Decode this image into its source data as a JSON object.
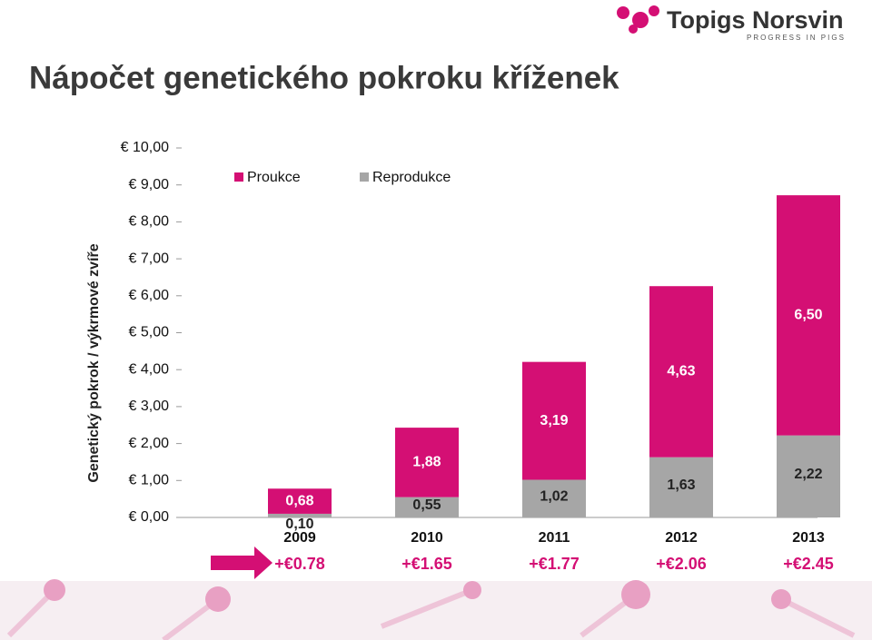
{
  "logo": {
    "name": "Topigs Norsvin",
    "tagline": "PROGRESS IN PIGS"
  },
  "chart_data": {
    "type": "stacked-bar",
    "title": "Nápočet genetického pokroku kříženek",
    "y_label": "Genetický pokrok / výkrmové zvíře",
    "categories": [
      "2009",
      "2010",
      "2011",
      "2012",
      "2013"
    ],
    "series": [
      {
        "name": "Reprodukce",
        "color": "#a6a6a6",
        "values": [
          0.1,
          0.55,
          1.02,
          1.63,
          2.22
        ],
        "value_labels": [
          "0,10",
          "0,55",
          "1,02",
          "1,63",
          "2,22"
        ]
      },
      {
        "name": "Proukce",
        "color": "#d40f74",
        "values": [
          0.68,
          1.88,
          3.19,
          4.63,
          6.5
        ],
        "value_labels": [
          "0,68",
          "1,88",
          "3,19",
          "4,63",
          "6,50"
        ]
      }
    ],
    "annotations": [
      "+€0.78",
      "+€1.65",
      "+€1.77",
      "+€2.06",
      "+€2.45"
    ],
    "ylim": [
      0,
      10
    ],
    "yticks": [
      {
        "value": 0,
        "label": "€ 0,00"
      },
      {
        "value": 1,
        "label": "€ 1,00"
      },
      {
        "value": 2,
        "label": "€ 2,00"
      },
      {
        "value": 3,
        "label": "€ 3,00"
      },
      {
        "value": 4,
        "label": "€ 4,00"
      },
      {
        "value": 5,
        "label": "€ 5,00"
      },
      {
        "value": 6,
        "label": "€ 6,00"
      },
      {
        "value": 7,
        "label": "€ 7,00"
      },
      {
        "value": 8,
        "label": "€ 8,00"
      },
      {
        "value": 9,
        "label": "€ 9,00"
      },
      {
        "value": 10,
        "label": "€ 10,00"
      }
    ],
    "grid": false,
    "legend": "top"
  }
}
